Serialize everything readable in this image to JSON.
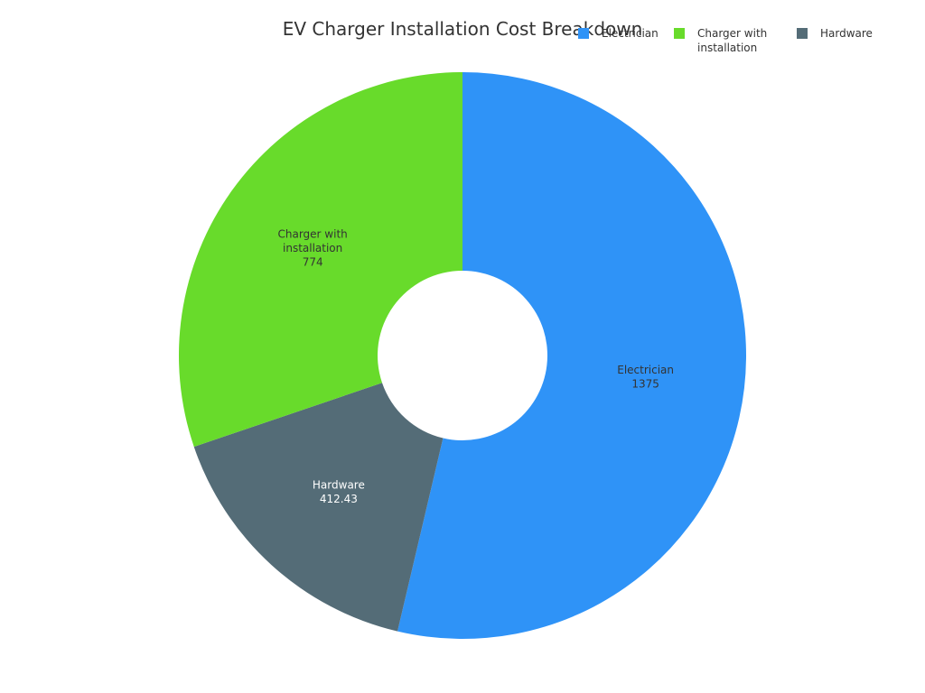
{
  "chart_data": {
    "type": "pie",
    "title": "EV Charger Installation Cost Breakdown",
    "donut": true,
    "legend_position": "top-right",
    "slices": [
      {
        "label": "Electrician",
        "value": 1375,
        "value_text": "1375",
        "color": "#2f93f7",
        "label_color": "#333333"
      },
      {
        "label": "Hardware",
        "value": 412.43,
        "value_text": "412.43",
        "color": "#546c77",
        "label_color": "#ffffff"
      },
      {
        "label": "Charger with installation",
        "value": 774,
        "value_text": "774",
        "color": "#68db2b",
        "label_color": "#333333"
      }
    ],
    "legend": [
      {
        "label": "Electrician",
        "color": "#2f93f7"
      },
      {
        "label": "Charger with installation",
        "color": "#68db2b"
      },
      {
        "label": "Hardware",
        "color": "#546c77"
      }
    ]
  }
}
